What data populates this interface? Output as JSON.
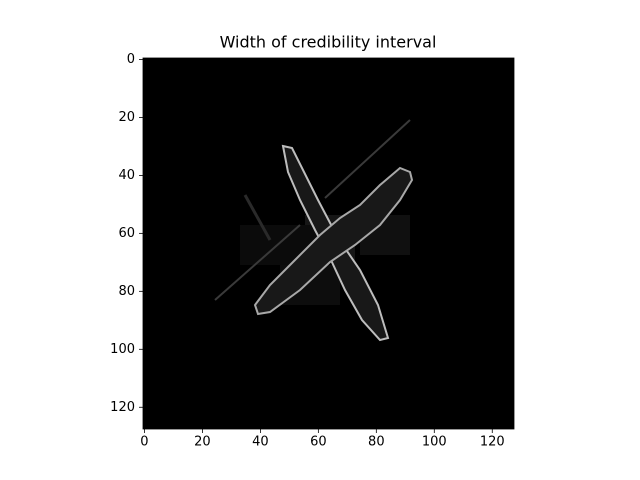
{
  "chart_data": {
    "type": "image",
    "title": "Width of credibility interval",
    "xlim": [
      -0.5,
      127.5
    ],
    "ylim": [
      127.5,
      -0.5
    ],
    "xticks": [
      0,
      20,
      40,
      60,
      80,
      100,
      120
    ],
    "yticks": [
      0,
      20,
      40,
      60,
      80,
      100,
      120
    ],
    "cmap": "gray"
  }
}
